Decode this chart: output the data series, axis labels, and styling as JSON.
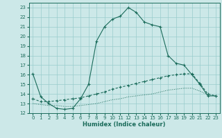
{
  "title": "",
  "xlabel": "Humidex (Indice chaleur)",
  "bg_color": "#cce8e8",
  "grid_color": "#99cccc",
  "line_color": "#1a6b5a",
  "xlim": [
    -0.5,
    23.5
  ],
  "ylim": [
    12,
    23.5
  ],
  "xticks": [
    0,
    1,
    2,
    3,
    4,
    5,
    6,
    7,
    8,
    9,
    10,
    11,
    12,
    13,
    14,
    15,
    16,
    17,
    18,
    19,
    20,
    21,
    22,
    23
  ],
  "yticks": [
    12,
    13,
    14,
    15,
    16,
    17,
    18,
    19,
    20,
    21,
    22,
    23
  ],
  "line1_x": [
    0,
    1,
    2,
    3,
    4,
    5,
    6,
    7,
    8,
    9,
    10,
    11,
    12,
    13,
    14,
    15,
    16,
    17,
    18,
    19,
    20,
    21,
    22,
    23
  ],
  "line1_y": [
    16.1,
    13.7,
    13.0,
    12.5,
    12.4,
    12.5,
    13.5,
    15.0,
    19.5,
    21.0,
    21.8,
    22.1,
    23.0,
    22.5,
    21.5,
    21.2,
    21.0,
    18.0,
    17.2,
    17.0,
    16.0,
    15.0,
    13.8,
    13.8
  ],
  "line2_x": [
    0,
    1,
    2,
    3,
    4,
    5,
    6,
    7,
    8,
    9,
    10,
    11,
    12,
    13,
    14,
    15,
    16,
    17,
    18,
    19,
    20,
    21,
    22,
    23
  ],
  "line2_y": [
    13.5,
    13.2,
    13.2,
    13.3,
    13.4,
    13.5,
    13.6,
    13.8,
    14.0,
    14.2,
    14.5,
    14.7,
    14.9,
    15.1,
    15.3,
    15.5,
    15.7,
    15.9,
    16.0,
    16.1,
    16.1,
    15.1,
    14.0,
    13.8
  ],
  "line3_x": [
    0,
    1,
    2,
    3,
    4,
    5,
    6,
    7,
    8,
    9,
    10,
    11,
    12,
    13,
    14,
    15,
    16,
    17,
    18,
    19,
    20,
    21,
    22,
    23
  ],
  "line3_y": [
    13.0,
    12.9,
    12.8,
    12.8,
    12.7,
    12.7,
    12.8,
    12.9,
    13.0,
    13.2,
    13.4,
    13.5,
    13.7,
    13.8,
    13.9,
    14.0,
    14.2,
    14.4,
    14.5,
    14.6,
    14.6,
    14.3,
    13.9,
    13.8
  ]
}
